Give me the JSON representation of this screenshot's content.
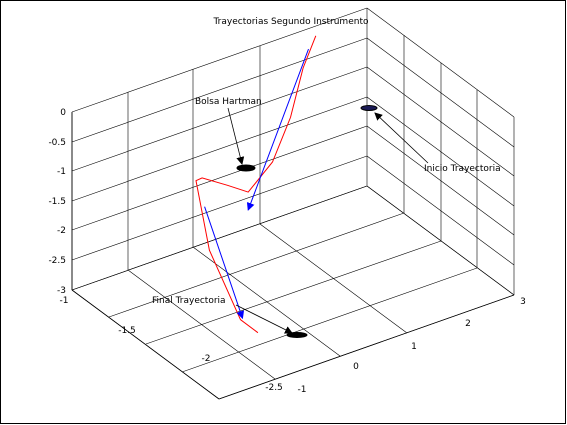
{
  "chart_data": {
    "type": "line",
    "title": "Trayectorias   Segundo Instrumento",
    "xlabel": "",
    "ylabel": "",
    "zlabel": "",
    "xlim": [
      -2.5,
      -1
    ],
    "ylim": [
      -1,
      3
    ],
    "zlim": [
      -3,
      0
    ],
    "x_ticks": [
      "-2.5",
      "-2",
      "-1.5",
      "-1"
    ],
    "y_ticks": [
      "-1",
      "0",
      "1",
      "2",
      "3"
    ],
    "z_ticks": [
      "-3",
      "-2.5",
      "-2",
      "-1.5",
      "-1",
      "-0.5",
      "0"
    ],
    "grid": true,
    "series": [
      {
        "color": "#ff0000",
        "points": [
          [
            -1.08,
            2.2,
            -0.02
          ],
          [
            -1.1,
            2.0,
            -0.45
          ],
          [
            -1.16,
            1.75,
            -1.1
          ],
          [
            -1.24,
            1.4,
            -1.6
          ],
          [
            -1.33,
            0.95,
            -1.8
          ],
          [
            -1.42,
            0.55,
            -1.4
          ],
          [
            -1.5,
            0.1,
            -0.98
          ],
          [
            -1.55,
            -0.05,
            -0.9
          ],
          [
            -1.8,
            -0.2,
            -1.7
          ],
          [
            -2.08,
            -0.15,
            -2.55
          ],
          [
            -2.22,
            -0.1,
            -2.62
          ]
        ]
      },
      {
        "color": "#0000ff",
        "points": [
          [
            -1.08,
            2.1,
            -0.2
          ],
          [
            -1.33,
            0.95,
            -2.1
          ]
        ]
      },
      {
        "color": "#0000ff",
        "points": [
          [
            -1.6,
            0.0,
            -1.3
          ],
          [
            -2.1,
            -0.15,
            -2.5
          ]
        ]
      }
    ],
    "annotations": [
      {
        "text": "Bolsa Hartman",
        "target": "pocket-1"
      },
      {
        "text": "Inicio Trayectoria",
        "target": "pocket-2"
      },
      {
        "text": "Final Trayectoria",
        "target": "pocket-3"
      }
    ]
  }
}
